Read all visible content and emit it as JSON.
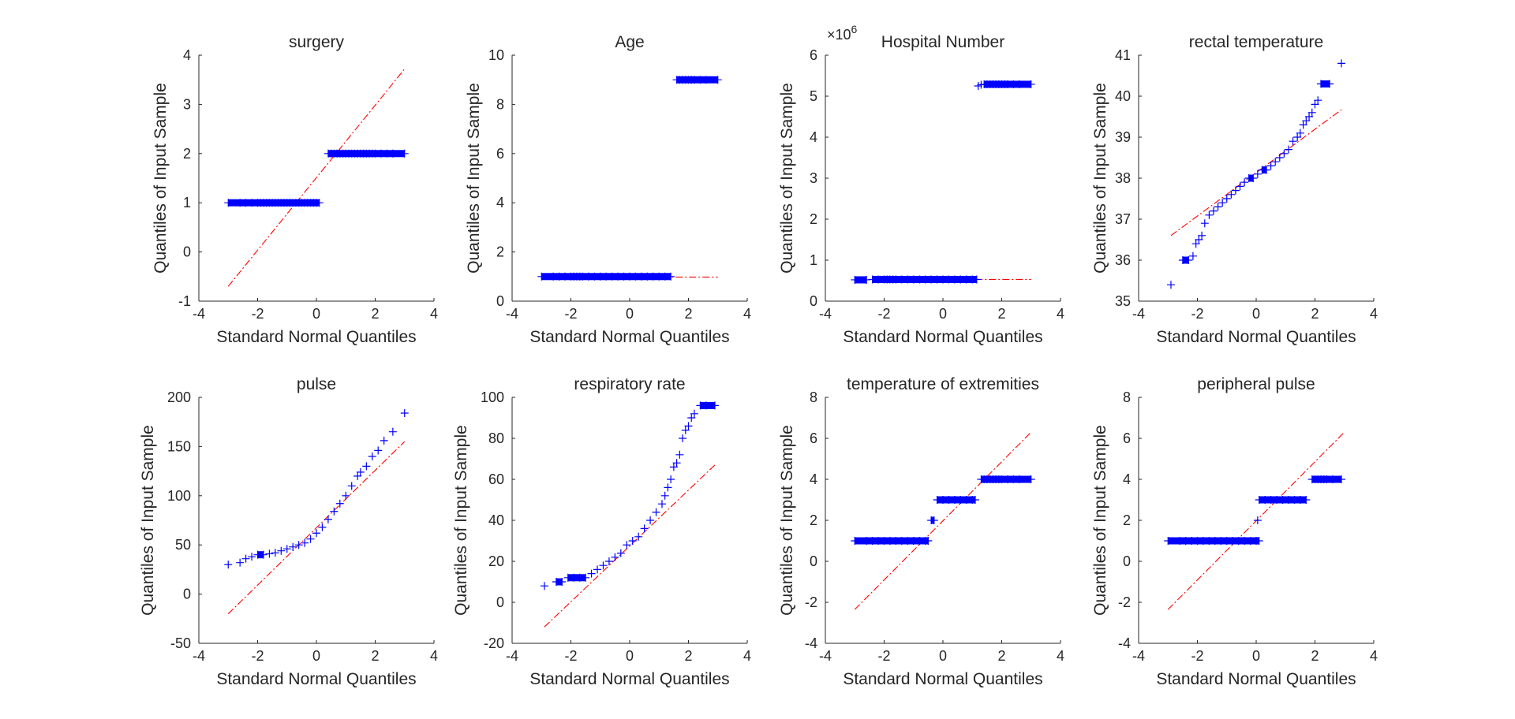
{
  "chart_data": [
    {
      "type": "scatter",
      "title": "surgery",
      "xlabel": "Standard Normal Quantiles",
      "ylabel": "Quantiles of Input Sample",
      "xlim": [
        -4,
        4
      ],
      "ylim": [
        -1,
        4
      ],
      "xticks": [
        -4,
        -2,
        0,
        2,
        4
      ],
      "yticks": [
        -1,
        0,
        1,
        2,
        3,
        4
      ],
      "ref_line": {
        "x": [
          -3,
          3
        ],
        "y": [
          -0.7,
          3.72
        ]
      },
      "series": [
        {
          "x": [
            -3.0,
            -2.6,
            -2.4,
            -2.2,
            -2.0,
            -1.9,
            -1.8,
            -1.7,
            -1.6,
            -1.5,
            -1.4,
            -1.3,
            -1.2,
            -1.1,
            -1.0,
            -0.9,
            -0.8,
            -0.7,
            -0.6,
            -0.5,
            -0.4,
            -0.3,
            -0.2,
            -0.1,
            0.0,
            0.1
          ],
          "y": [
            1,
            1,
            1,
            1,
            1,
            1,
            1,
            1,
            1,
            1,
            1,
            1,
            1,
            1,
            1,
            1,
            1,
            1,
            1,
            1,
            1,
            1,
            1,
            1,
            1,
            1
          ]
        },
        {
          "x": [
            0.4,
            0.5,
            0.6,
            0.7,
            0.8,
            0.9,
            1.0,
            1.1,
            1.2,
            1.3,
            1.4,
            1.5,
            1.6,
            1.7,
            1.8,
            1.9,
            2.0,
            2.2,
            2.4,
            2.6,
            3.0
          ],
          "y": [
            2,
            2,
            2,
            2,
            2,
            2,
            2,
            2,
            2,
            2,
            2,
            2,
            2,
            2,
            2,
            2,
            2,
            2,
            2,
            2,
            2
          ]
        }
      ]
    },
    {
      "type": "scatter",
      "title": "Age",
      "xlabel": "Standard Normal Quantiles",
      "ylabel": "Quantiles of Input Sample",
      "xlim": [
        -4,
        4
      ],
      "ylim": [
        0,
        10
      ],
      "xticks": [
        -4,
        -2,
        0,
        2,
        4
      ],
      "yticks": [
        0,
        2,
        4,
        6,
        8,
        10
      ],
      "ref_line": {
        "x": [
          -3,
          3
        ],
        "y": [
          0.98,
          0.98
        ]
      },
      "series": [
        {
          "x": [
            -3.0,
            -2.6,
            -2.4,
            -2.2,
            -2.0,
            -1.9,
            -1.8,
            -1.7,
            -1.6,
            -1.4,
            -1.2,
            -1.0,
            -0.8,
            -0.6,
            -0.4,
            -0.2,
            0.0,
            0.2,
            0.4,
            0.6,
            0.8,
            1.0,
            1.2,
            1.4
          ],
          "y": [
            1,
            1,
            1,
            1,
            1,
            1,
            1,
            1,
            1,
            1,
            1,
            1,
            1,
            1,
            1,
            1,
            1,
            1,
            1,
            1,
            1,
            1,
            1,
            1
          ]
        },
        {
          "x": [
            1.6,
            1.7,
            1.8,
            1.9,
            2.0,
            2.1,
            2.2,
            2.4,
            2.6,
            3.0
          ],
          "y": [
            9,
            9,
            9,
            9,
            9,
            9,
            9,
            9,
            9,
            9
          ]
        }
      ]
    },
    {
      "type": "scatter",
      "title": "Hospital Number",
      "xlabel": "Standard Normal Quantiles",
      "ylabel": "Quantiles of Input Sample",
      "xlim": [
        -4,
        4
      ],
      "ylim": [
        0,
        6
      ],
      "y_exponent_label": "×10",
      "y_exponent": "6",
      "xticks": [
        -4,
        -2,
        0,
        2,
        4
      ],
      "yticks": [
        0,
        1,
        2,
        3,
        4,
        5,
        6
      ],
      "ref_line": {
        "x": [
          -3,
          3
        ],
        "y": [
          0.53,
          0.53
        ]
      },
      "series": [
        {
          "x": [
            -3.0,
            -2.6,
            -2.4,
            -2.2,
            -2.0,
            -1.9,
            -1.8,
            -1.7,
            -1.6,
            -1.4,
            -1.2,
            -1.0,
            -0.8,
            -0.6,
            -0.4,
            -0.2,
            0.0,
            0.2,
            0.4,
            0.6,
            0.8,
            1.0,
            1.15
          ],
          "y": [
            0.52,
            0.52,
            0.53,
            0.53,
            0.53,
            0.53,
            0.53,
            0.53,
            0.53,
            0.53,
            0.53,
            0.53,
            0.53,
            0.53,
            0.53,
            0.53,
            0.53,
            0.53,
            0.53,
            0.53,
            0.53,
            0.53,
            0.53
          ]
        },
        {
          "x": [
            1.2,
            1.3,
            1.4,
            1.5,
            1.6,
            1.7,
            1.8,
            1.9,
            2.0,
            2.1,
            2.2,
            2.4,
            2.6,
            3.0
          ],
          "y": [
            5.25,
            5.28,
            5.29,
            5.29,
            5.29,
            5.29,
            5.29,
            5.29,
            5.29,
            5.29,
            5.29,
            5.29,
            5.29,
            5.29
          ]
        }
      ]
    },
    {
      "type": "scatter",
      "title": "rectal temperature",
      "xlabel": "Standard Normal Quantiles",
      "ylabel": "Quantiles of Input Sample",
      "xlim": [
        -4,
        4
      ],
      "ylim": [
        35,
        41
      ],
      "xticks": [
        -4,
        -2,
        0,
        2,
        4
      ],
      "yticks": [
        35,
        36,
        37,
        38,
        39,
        40,
        41
      ],
      "ref_line": {
        "x": [
          -2.9,
          2.9
        ],
        "y": [
          36.6,
          39.67
        ]
      },
      "series": [
        {
          "x": [
            -2.9,
            -2.5,
            -2.3,
            -2.15,
            -2.05,
            -1.95,
            -1.85,
            -1.75,
            -1.6,
            -1.45,
            -1.3,
            -1.15,
            -1.0,
            -0.85,
            -0.7,
            -0.55,
            -0.4,
            -0.25,
            -0.1,
            0.05,
            0.2,
            0.35,
            0.5,
            0.65,
            0.8,
            0.95,
            1.1,
            1.25,
            1.4,
            1.5,
            1.6,
            1.7,
            1.8,
            1.9,
            2.0,
            2.1,
            2.2,
            2.5,
            2.9
          ],
          "y": [
            35.4,
            36.0,
            36.0,
            36.1,
            36.4,
            36.5,
            36.6,
            36.9,
            37.1,
            37.2,
            37.3,
            37.4,
            37.5,
            37.6,
            37.7,
            37.8,
            37.9,
            38.0,
            38.0,
            38.1,
            38.2,
            38.2,
            38.3,
            38.4,
            38.5,
            38.6,
            38.7,
            38.9,
            39.0,
            39.1,
            39.3,
            39.4,
            39.5,
            39.6,
            39.8,
            39.9,
            40.3,
            40.3,
            40.8
          ]
        }
      ]
    },
    {
      "type": "scatter",
      "title": "pulse",
      "xlabel": "Standard Normal Quantiles",
      "ylabel": "Quantiles of Input Sample",
      "xlim": [
        -4,
        4
      ],
      "ylim": [
        -50,
        200
      ],
      "xticks": [
        -4,
        -2,
        0,
        2,
        4
      ],
      "yticks": [
        -50,
        0,
        50,
        100,
        150,
        200
      ],
      "ref_line": {
        "x": [
          -3,
          3
        ],
        "y": [
          -20,
          155
        ]
      },
      "series": [
        {
          "x": [
            -3.0,
            -2.6,
            -2.4,
            -2.2,
            -2.0,
            -1.8,
            -1.6,
            -1.4,
            -1.2,
            -1.0,
            -0.8,
            -0.6,
            -0.4,
            -0.2,
            0.0,
            0.2,
            0.4,
            0.6,
            0.8,
            1.0,
            1.2,
            1.4,
            1.5,
            1.7,
            1.9,
            2.1,
            2.3,
            2.6,
            3.0
          ],
          "y": [
            30,
            32,
            36,
            38,
            40,
            40,
            41,
            42,
            44,
            46,
            48,
            50,
            52,
            56,
            62,
            68,
            76,
            84,
            92,
            100,
            110,
            120,
            124,
            130,
            140,
            146,
            156,
            165,
            184
          ]
        }
      ]
    },
    {
      "type": "scatter",
      "title": "respiratory rate",
      "xlabel": "Standard Normal Quantiles",
      "ylabel": "Quantiles of Input Sample",
      "xlim": [
        -4,
        4
      ],
      "ylim": [
        -20,
        100
      ],
      "xticks": [
        -4,
        -2,
        0,
        2,
        4
      ],
      "yticks": [
        -20,
        0,
        20,
        40,
        60,
        80,
        100
      ],
      "ref_line": {
        "x": [
          -2.9,
          2.9
        ],
        "y": [
          -12,
          67
        ]
      },
      "series": [
        {
          "x": [
            -2.9,
            -2.5,
            -2.3,
            -2.1,
            -1.9,
            -1.7,
            -1.5,
            -1.3,
            -1.1,
            -0.9,
            -0.7,
            -0.5,
            -0.3,
            -0.1,
            0.1,
            0.3,
            0.5,
            0.7,
            0.9,
            1.1,
            1.2,
            1.3,
            1.4,
            1.5,
            1.6,
            1.7,
            1.8,
            1.9,
            2.0,
            2.1,
            2.2,
            2.4,
            2.6,
            2.9
          ],
          "y": [
            8,
            10,
            10,
            12,
            12,
            12,
            12,
            14,
            16,
            18,
            20,
            22,
            24,
            28,
            30,
            32,
            36,
            40,
            44,
            48,
            52,
            56,
            60,
            66,
            68,
            72,
            80,
            84,
            86,
            90,
            92,
            96,
            96,
            96
          ]
        }
      ]
    },
    {
      "type": "scatter",
      "title": "temperature of extremities",
      "xlabel": "Standard Normal Quantiles",
      "ylabel": "Quantiles of Input Sample",
      "xlim": [
        -4,
        4
      ],
      "ylim": [
        -4,
        8
      ],
      "xticks": [
        -4,
        -2,
        0,
        2,
        4
      ],
      "yticks": [
        -4,
        -2,
        0,
        2,
        4,
        6,
        8
      ],
      "ref_line": {
        "x": [
          -3,
          3
        ],
        "y": [
          -2.35,
          6.3
        ]
      },
      "series": [
        {
          "x": [
            -3.0,
            -2.6,
            -2.4,
            -2.2,
            -2.0,
            -1.8,
            -1.6,
            -1.4,
            -1.2,
            -1.0,
            -0.8,
            -0.6,
            -0.5
          ],
          "y": [
            1,
            1,
            1,
            1,
            1,
            1,
            1,
            1,
            1,
            1,
            1,
            1,
            1
          ]
        },
        {
          "x": [
            -0.4,
            -0.3
          ],
          "y": [
            2,
            2
          ]
        },
        {
          "x": [
            -0.2,
            0.0,
            0.2,
            0.4,
            0.6,
            0.8,
            1.0,
            1.1
          ],
          "y": [
            3,
            3,
            3,
            3,
            3,
            3,
            3,
            3
          ]
        },
        {
          "x": [
            1.3,
            1.4,
            1.5,
            1.6,
            1.7,
            1.8,
            1.9,
            2.0,
            2.2,
            2.4,
            2.6,
            3.0
          ],
          "y": [
            4,
            4,
            4,
            4,
            4,
            4,
            4,
            4,
            4,
            4,
            4,
            4
          ]
        }
      ]
    },
    {
      "type": "scatter",
      "title": "peripheral pulse",
      "xlabel": "Standard Normal Quantiles",
      "ylabel": "Quantiles of Input Sample",
      "xlim": [
        -4,
        4
      ],
      "ylim": [
        -4,
        8
      ],
      "xticks": [
        -4,
        -2,
        0,
        2,
        4
      ],
      "yticks": [
        -4,
        -2,
        0,
        2,
        4,
        6,
        8
      ],
      "ref_line": {
        "x": [
          -3,
          3
        ],
        "y": [
          -2.35,
          6.3
        ]
      },
      "series": [
        {
          "x": [
            -3.0,
            -2.6,
            -2.4,
            -2.2,
            -2.0,
            -1.8,
            -1.6,
            -1.4,
            -1.2,
            -1.0,
            -0.8,
            -0.6,
            -0.4,
            -0.2,
            0.0,
            0.1
          ],
          "y": [
            1,
            1,
            1,
            1,
            1,
            1,
            1,
            1,
            1,
            1,
            1,
            1,
            1,
            1,
            1,
            1
          ]
        },
        {
          "x": [
            0.05
          ],
          "y": [
            2
          ]
        },
        {
          "x": [
            0.1,
            0.3,
            0.5,
            0.7,
            0.9,
            1.1,
            1.3,
            1.5,
            1.7
          ],
          "y": [
            3,
            3,
            3,
            3,
            3,
            3,
            3,
            3,
            3
          ]
        },
        {
          "x": [
            1.9,
            2.0,
            2.1,
            2.2,
            2.3,
            2.4,
            2.6,
            2.9
          ],
          "y": [
            4,
            4,
            4,
            4,
            4,
            4,
            4,
            4
          ]
        }
      ]
    }
  ]
}
